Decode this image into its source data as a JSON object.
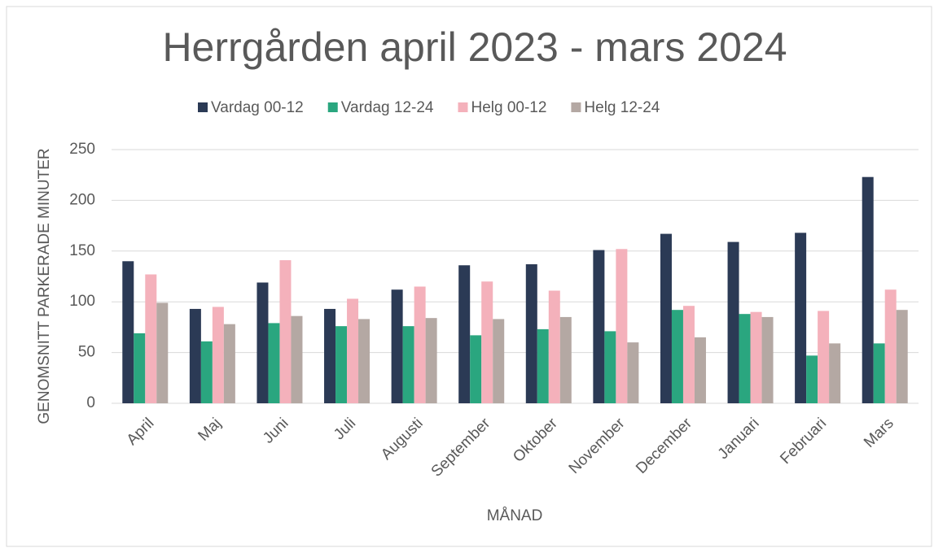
{
  "chart_data": {
    "type": "bar",
    "title": "Herrgården april 2023 - mars 2024",
    "x_label": "MÅNAD",
    "y_label": "GENOMSNITT PARKERADE MINUTER",
    "categories": [
      "April",
      "Maj",
      "Juni",
      "Juli",
      "Augusti",
      "September",
      "Oktober",
      "November",
      "December",
      "Januari",
      "Februari",
      "Mars"
    ],
    "series": [
      {
        "name": "Vardag 00-12",
        "color": "#2b3a55",
        "values": [
          140,
          93,
          119,
          93,
          112,
          136,
          137,
          151,
          167,
          159,
          168,
          223
        ]
      },
      {
        "name": "Vardag 12-24",
        "color": "#2aa67f",
        "values": [
          69,
          61,
          79,
          76,
          76,
          67,
          73,
          71,
          92,
          88,
          47,
          59
        ]
      },
      {
        "name": "Helg 00-12",
        "color": "#f4b1bb",
        "values": [
          127,
          95,
          141,
          103,
          115,
          120,
          111,
          152,
          96,
          90,
          91,
          112
        ]
      },
      {
        "name": "Helg 12-24",
        "color": "#b4a8a3",
        "values": [
          99,
          78,
          86,
          83,
          84,
          83,
          85,
          60,
          65,
          85,
          59,
          92
        ]
      }
    ],
    "ylim": [
      0,
      250
    ],
    "yticks": [
      0,
      50,
      100,
      150,
      200,
      250
    ],
    "grid": true,
    "legend": "top"
  }
}
